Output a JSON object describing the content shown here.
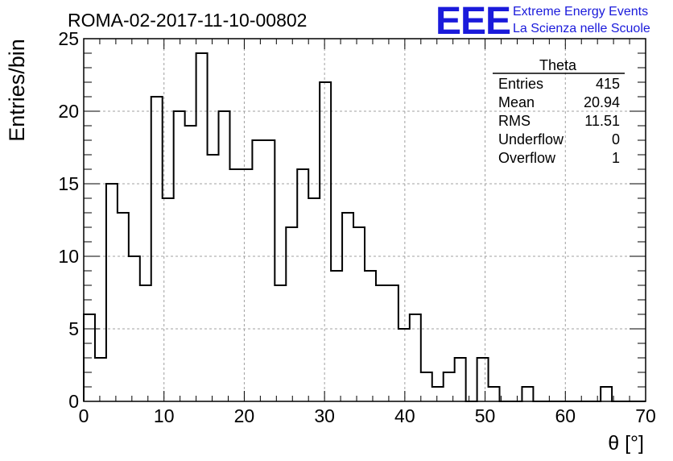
{
  "chart_data": {
    "type": "histogram",
    "title": "ROMA-02-2017-11-10-00802",
    "xlabel": "θ [°]",
    "ylabel": "Entries/bin",
    "xlim": [
      0,
      70
    ],
    "ylim": [
      0,
      25
    ],
    "x_ticks": [
      0,
      10,
      20,
      30,
      40,
      50,
      60,
      70
    ],
    "y_ticks": [
      0,
      5,
      10,
      15,
      20,
      25
    ],
    "grid": true,
    "bin_width": 1.4,
    "values": [
      6,
      3,
      15,
      13,
      10,
      8,
      21,
      14,
      20,
      19,
      24,
      17,
      20,
      16,
      16,
      18,
      18,
      8,
      12,
      16,
      14,
      22,
      9,
      13,
      12,
      9,
      8,
      8,
      5,
      6,
      2,
      1,
      2,
      3,
      0,
      3,
      1,
      0,
      0,
      1,
      0,
      0,
      0,
      0,
      0,
      0,
      1,
      0,
      0,
      0
    ],
    "stats": {
      "name": "Theta",
      "rows": [
        {
          "label": "Entries",
          "value": "415"
        },
        {
          "label": "Mean",
          "value": "20.94"
        },
        {
          "label": "RMS",
          "value": "11.51"
        },
        {
          "label": "Underflow",
          "value": "0"
        },
        {
          "label": "Overflow",
          "value": "1"
        }
      ]
    }
  },
  "logo": {
    "mark": "EEE",
    "line1": "Extreme Energy Events",
    "line2": "La Scienza nelle Scuole",
    "color": "#1a1adb"
  }
}
